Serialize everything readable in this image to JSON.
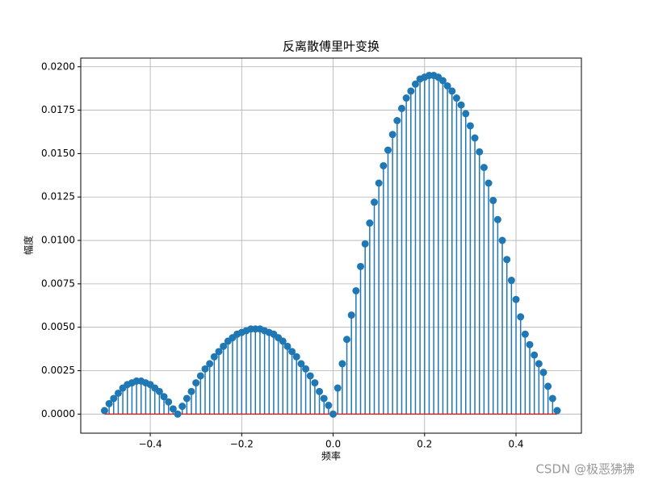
{
  "chart_data": {
    "type": "stem",
    "title": "反离散傅里叶变换",
    "xlabel": "频率",
    "ylabel": "幅度",
    "watermark": "CSDN @极恶狒狒",
    "color": "#1f77b4",
    "baseline_color": "#d62728",
    "grid": true,
    "xlim": [
      -0.552,
      0.543
    ],
    "ylim": [
      -0.0011,
      0.0205
    ],
    "xticks": [
      {
        "value": -0.4,
        "label": "−0.4"
      },
      {
        "value": -0.2,
        "label": "−0.2"
      },
      {
        "value": 0,
        "label": "0.0"
      },
      {
        "value": 0.2,
        "label": "0.2"
      },
      {
        "value": 0.4,
        "label": "0.4"
      }
    ],
    "yticks": [
      {
        "value": 0,
        "label": "0.0000"
      },
      {
        "value": 0.0025,
        "label": "0.0025"
      },
      {
        "value": 0.005,
        "label": "0.0050"
      },
      {
        "value": 0.0075,
        "label": "0.0075"
      },
      {
        "value": 0.01,
        "label": "0.0100"
      },
      {
        "value": 0.0125,
        "label": "0.0125"
      },
      {
        "value": 0.015,
        "label": "0.0150"
      },
      {
        "value": 0.0175,
        "label": "0.0175"
      },
      {
        "value": 0.02,
        "label": "0.0200"
      }
    ],
    "x": [
      -0.5,
      -0.49,
      -0.48,
      -0.47,
      -0.46,
      -0.45,
      -0.44,
      -0.43,
      -0.42,
      -0.41,
      -0.4,
      -0.39,
      -0.38,
      -0.37,
      -0.36,
      -0.35,
      -0.34,
      -0.33,
      -0.32,
      -0.31,
      -0.3,
      -0.29,
      -0.28,
      -0.27,
      -0.26,
      -0.25,
      -0.24,
      -0.23,
      -0.22,
      -0.21,
      -0.2,
      -0.19,
      -0.18,
      -0.17,
      -0.16,
      -0.15,
      -0.14,
      -0.13,
      -0.12,
      -0.11,
      -0.1,
      -0.09,
      -0.08,
      -0.07,
      -0.06,
      -0.05,
      -0.04,
      -0.03,
      -0.02,
      -0.01,
      0,
      0.01,
      0.02,
      0.03,
      0.04,
      0.05,
      0.06,
      0.07,
      0.08,
      0.09,
      0.1,
      0.11,
      0.12,
      0.13,
      0.14,
      0.15,
      0.16,
      0.17,
      0.18,
      0.19,
      0.2,
      0.21,
      0.22,
      0.23,
      0.24,
      0.25,
      0.26,
      0.27,
      0.28,
      0.29,
      0.3,
      0.31,
      0.32,
      0.33,
      0.34,
      0.35,
      0.36,
      0.37,
      0.38,
      0.39,
      0.4,
      0.41,
      0.42,
      0.43,
      0.44,
      0.45,
      0.46,
      0.47,
      0.48,
      0.49
    ],
    "values": [
      0.0002,
      0.0006,
      0.0009,
      0.0012,
      0.0015,
      0.0017,
      0.0018,
      0.0019,
      0.0019,
      0.0018,
      0.0017,
      0.0015,
      0.0013,
      0.001,
      0.0007,
      0.0003,
      0.0,
      0.00045,
      0.0009,
      0.0013,
      0.0018,
      0.0022,
      0.0026,
      0.0029,
      0.0033,
      0.0036,
      0.0039,
      0.0042,
      0.0044,
      0.0046,
      0.0047,
      0.0048,
      0.0049,
      0.0049,
      0.0049,
      0.0048,
      0.0047,
      0.0046,
      0.0044,
      0.0042,
      0.0039,
      0.0036,
      0.0033,
      0.0029,
      0.0026,
      0.0022,
      0.0018,
      0.0013,
      0.0009,
      0.0005,
      0.0,
      0.0015,
      0.0029,
      0.0043,
      0.0057,
      0.0071,
      0.0085,
      0.0098,
      0.011,
      0.0122,
      0.0133,
      0.0143,
      0.0152,
      0.0161,
      0.0169,
      0.0176,
      0.0182,
      0.0186,
      0.019,
      0.0193,
      0.0194,
      0.0195,
      0.0195,
      0.0194,
      0.0192,
      0.0189,
      0.0186,
      0.0182,
      0.0178,
      0.0173,
      0.0166,
      0.0159,
      0.0151,
      0.0142,
      0.0133,
      0.0123,
      0.0112,
      0.01,
      0.0089,
      0.0077,
      0.0066,
      0.0056,
      0.0046,
      0.004,
      0.0034,
      0.0029,
      0.0024,
      0.0016,
      0.0009,
      0.0002
    ]
  }
}
